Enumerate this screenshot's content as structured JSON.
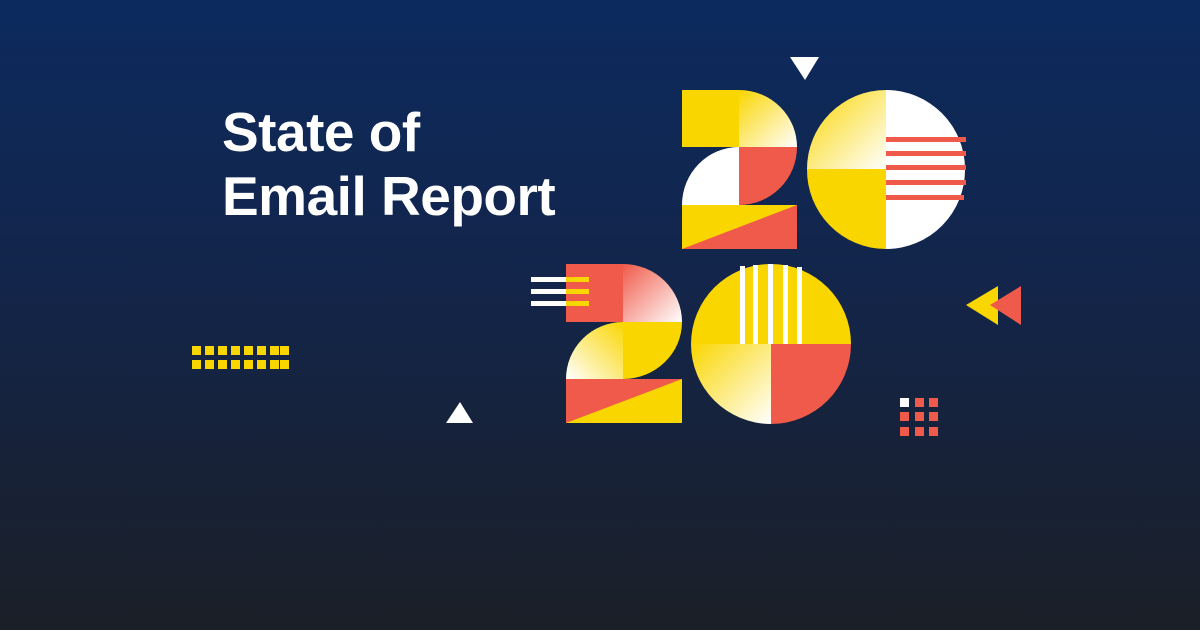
{
  "title": {
    "line1": "State of",
    "line2": "Email Report"
  },
  "artwork": {
    "year_top": "20",
    "year_bottom": "20"
  },
  "colors": {
    "background_top": "#0c2a5e",
    "background_bottom": "#1b1f27",
    "yellow": "#fad600",
    "red": "#f05a4a",
    "white": "#ffffff"
  }
}
